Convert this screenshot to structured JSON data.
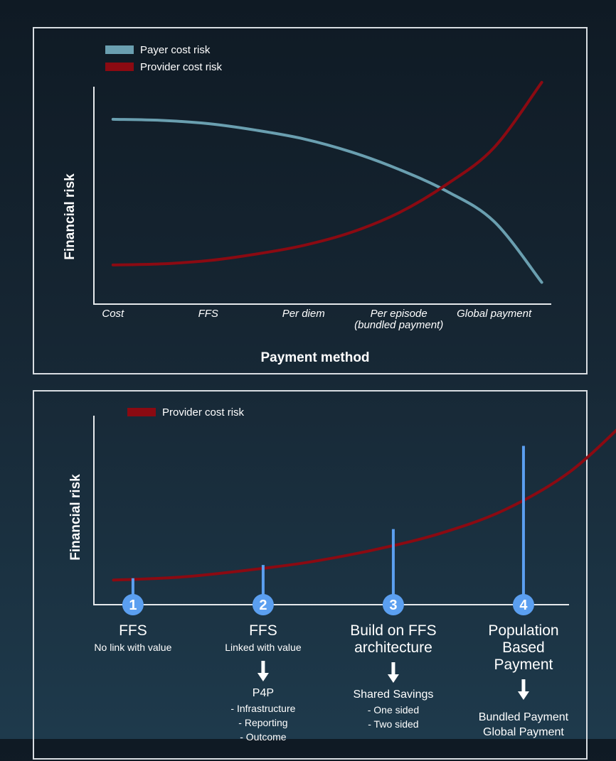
{
  "chart_data": [
    {
      "type": "line",
      "title": "",
      "xlabel": "Payment method",
      "ylabel": "Financial risk",
      "categories": [
        "Cost",
        "FFS",
        "Per diem",
        "Per episode\n(bundled payment)",
        "Global payment"
      ],
      "category_lines": [
        [
          "Cost"
        ],
        [
          "FFS"
        ],
        [
          "Per diem"
        ],
        [
          "Per episode",
          "(bundled payment)"
        ],
        [
          "Global payment"
        ]
      ],
      "x": [
        0,
        0.5,
        1,
        1.5,
        2,
        2.5,
        3,
        3.5,
        4,
        4.5
      ],
      "ylim": [
        0,
        100
      ],
      "legend_position": "top-left",
      "grid": false,
      "series": [
        {
          "name": "Payer cost risk",
          "color": "#6a9fb0",
          "values": [
            85,
            84.5,
            83,
            80,
            76,
            70,
            62,
            52,
            38,
            10
          ]
        },
        {
          "name": "Provider cost risk",
          "color": "#8b0a12",
          "values": [
            18,
            18.5,
            20,
            23,
            27,
            33,
            42,
            55,
            72,
            102
          ]
        }
      ]
    },
    {
      "type": "line",
      "title": "",
      "xlabel": "",
      "ylabel": "Financial risk",
      "legend_position": "top-left",
      "grid": false,
      "ylim": [
        0,
        100
      ],
      "series": [
        {
          "name": "Provider cost risk",
          "color": "#8b0a12",
          "x": [
            0,
            0.5,
            1,
            1.5,
            2,
            2.5,
            3,
            3.5,
            3.95
          ],
          "values": [
            13,
            14.5,
            18,
            22.5,
            29,
            37.5,
            50,
            70,
            98
          ]
        }
      ],
      "markers": [
        {
          "x": 0.15,
          "value": 14,
          "number": "1",
          "title_lines": [
            "FFS"
          ],
          "subtitle": "No link with value",
          "detail_head": "",
          "details": []
        },
        {
          "x": 1.15,
          "value": 21,
          "number": "2",
          "title_lines": [
            "FFS"
          ],
          "subtitle": "Linked with value",
          "detail_head": "P4P",
          "details": [
            "- Infrastructure",
            "- Reporting",
            "- Outcome"
          ]
        },
        {
          "x": 2.15,
          "value": 40,
          "number": "3",
          "title_lines": [
            "Build on FFS",
            "architecture"
          ],
          "subtitle": "",
          "detail_head": "Shared Savings",
          "details": [
            "- One sided",
            "- Two sided"
          ]
        },
        {
          "x": 3.15,
          "value": 84,
          "number": "4",
          "title_lines": [
            "Population",
            "Based",
            "Payment"
          ],
          "subtitle": "",
          "detail_head": "",
          "details": [
            "Bundled Payment",
            "Global Payment"
          ]
        }
      ],
      "marker_color": "#5b9ff0",
      "xlim": [
        -0.15,
        3.5
      ]
    }
  ]
}
